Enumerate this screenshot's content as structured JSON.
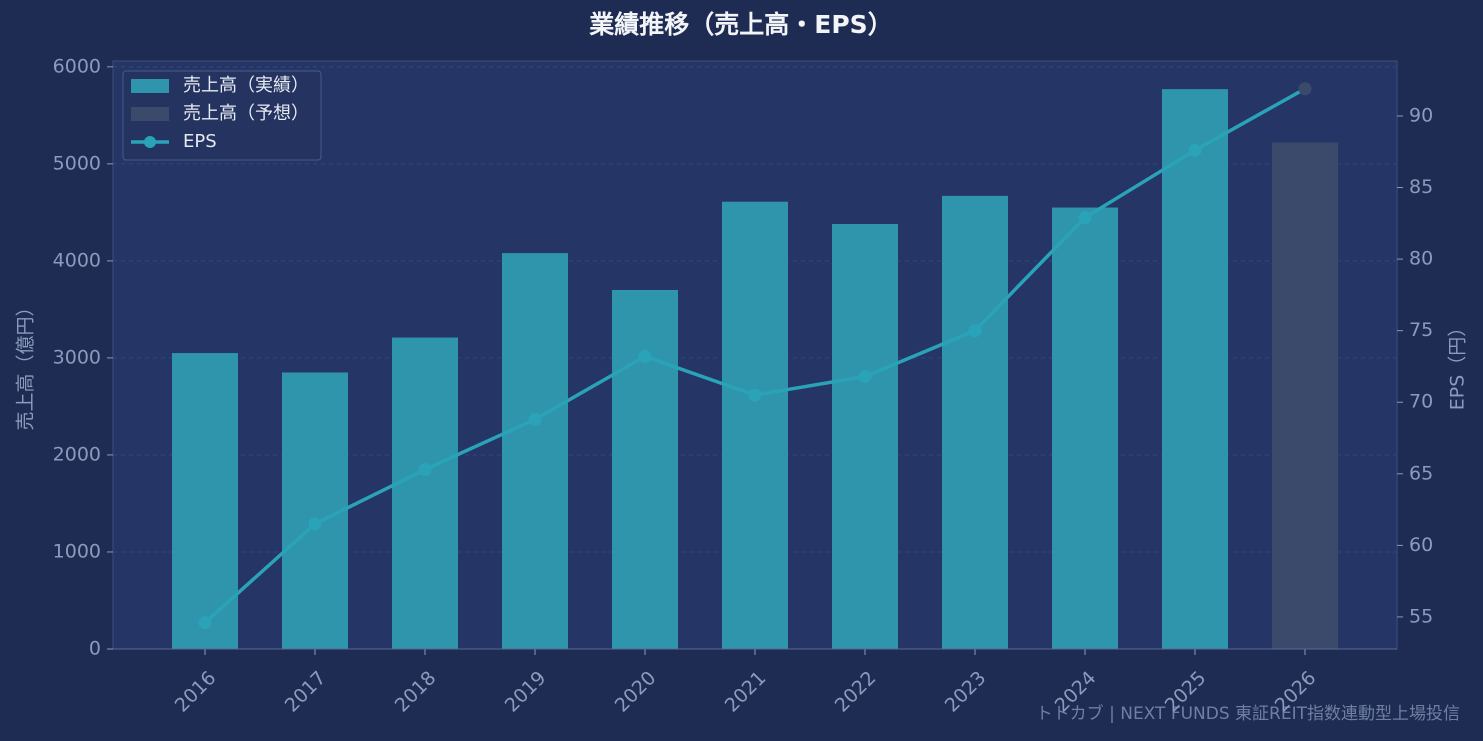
{
  "chart_data": {
    "type": "bar_line",
    "title": "業績推移（売上高・EPS）",
    "y_label": "売上高（億円）",
    "y2_label": "EPS（円）",
    "watermark": "トトカブ | NEXT FUNDS 東証REIT指数連動型上場投信",
    "categories": [
      "2016",
      "2017",
      "2018",
      "2019",
      "2020",
      "2021",
      "2022",
      "2023",
      "2024",
      "2025",
      "2026"
    ],
    "series": [
      {
        "name": "売上高（実績）",
        "color": "#2e95ad",
        "kind": "bar",
        "values": [
          3050,
          2850,
          3210,
          4080,
          3700,
          4610,
          4380,
          4670,
          4550,
          5770,
          null
        ]
      },
      {
        "name": "売上高（予想）",
        "color": "#3b4a6b",
        "kind": "bar",
        "values": [
          null,
          null,
          null,
          null,
          null,
          null,
          null,
          null,
          null,
          null,
          5220
        ]
      },
      {
        "name": "EPS",
        "color": "#2aa3b8",
        "kind": "line",
        "axis": "y2",
        "forecast_color": "#3b4a6b",
        "values": [
          54.6,
          61.5,
          65.3,
          68.8,
          73.2,
          70.5,
          71.8,
          75.0,
          82.9,
          87.6,
          91.9
        ]
      }
    ],
    "ylim": [
      0,
      6060
    ],
    "yticks": [
      0,
      1000,
      2000,
      3000,
      4000,
      5000,
      6000
    ],
    "y2lim": [
      52.76,
      93.84
    ],
    "y2ticks": [
      55,
      60,
      65,
      70,
      75,
      80,
      85,
      90
    ],
    "grid": true,
    "legend": "upper-left"
  }
}
